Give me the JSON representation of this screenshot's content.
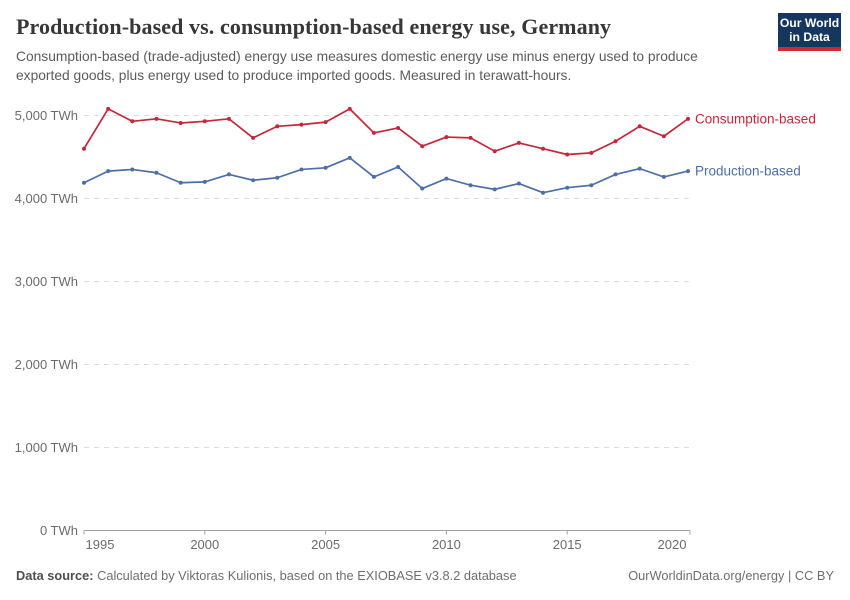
{
  "header": {
    "title": "Production-based vs. consumption-based energy use, Germany",
    "subtitle": "Consumption-based (trade-adjusted) energy use measures domestic energy use minus energy used to produce exported goods, plus energy used to produce imported goods. Measured in terawatt-hours.",
    "logo": {
      "line1": "Our World",
      "line2": "in Data",
      "bg_color": "#14365f",
      "stripe_color": "#d3292b"
    }
  },
  "chart_data": {
    "type": "line",
    "title": "Production-based vs. consumption-based energy use, Germany",
    "x": [
      1995,
      1996,
      1997,
      1998,
      1999,
      2000,
      2001,
      2002,
      2003,
      2004,
      2005,
      2006,
      2007,
      2008,
      2009,
      2010,
      2011,
      2012,
      2013,
      2014,
      2015,
      2016,
      2017,
      2018,
      2019,
      2020
    ],
    "series": [
      {
        "name": "Consumption-based",
        "color": "#c3273b",
        "values": [
          4600,
          5080,
          4930,
          4960,
          4910,
          4930,
          4960,
          4730,
          4870,
          4890,
          4920,
          5080,
          4790,
          4850,
          4630,
          4740,
          4730,
          4570,
          4670,
          4600,
          4530,
          4550,
          4690,
          4870,
          4750,
          4960
        ]
      },
      {
        "name": "Production-based",
        "color": "#4e6fa5",
        "values": [
          4190,
          4330,
          4350,
          4310,
          4190,
          4200,
          4290,
          4220,
          4250,
          4350,
          4370,
          4490,
          4260,
          4380,
          4120,
          4240,
          4160,
          4110,
          4180,
          4070,
          4130,
          4160,
          4290,
          4360,
          4260,
          4330
        ]
      }
    ],
    "ylim": [
      0,
      5250
    ],
    "xlim": [
      1995,
      2020
    ],
    "grid": "horizontal-dashed",
    "legend_position": "right-of-line-ends",
    "unit": "TWh",
    "yticks": [
      {
        "value": 0,
        "label": "0 TWh"
      },
      {
        "value": 1000,
        "label": "1,000 TWh"
      },
      {
        "value": 2000,
        "label": "2,000 TWh"
      },
      {
        "value": 3000,
        "label": "3,000 TWh"
      },
      {
        "value": 4000,
        "label": "4,000 TWh"
      },
      {
        "value": 5000,
        "label": "5,000 TWh"
      }
    ],
    "xticks": [
      {
        "year": 1995,
        "label": "1995"
      },
      {
        "year": 2000,
        "label": "2000"
      },
      {
        "year": 2005,
        "label": "2005"
      },
      {
        "year": 2010,
        "label": "2010"
      },
      {
        "year": 2015,
        "label": "2015"
      },
      {
        "year": 2020,
        "label": "2020"
      }
    ]
  },
  "footer": {
    "datasource_label": "Data source:",
    "datasource_text": " Calculated by Viktoras Kulionis, based on the EXIOBASE v3.8.2 database",
    "rights": "OurWorldinData.org/energy | CC BY"
  }
}
